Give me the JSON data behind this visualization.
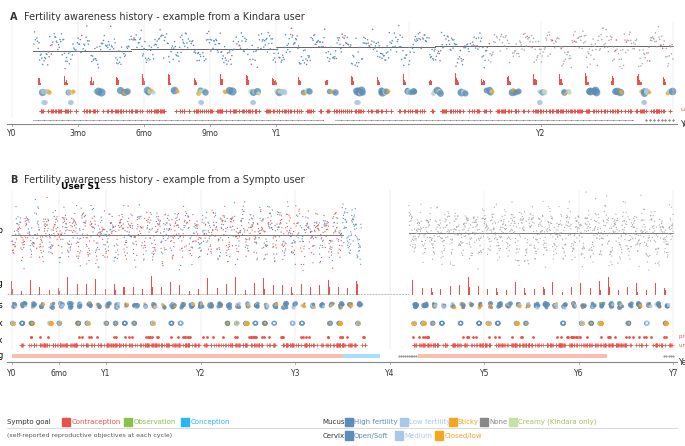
{
  "panel_A_title": "Fertility awareness history - example from a Kindara user",
  "panel_B_title": "Fertility awareness history - example from a Sympto user",
  "panel_B_subtitle": "User S1",
  "color_contraception": "#E8524A",
  "color_observation": "#8BC34A",
  "color_conception": "#29B6F6",
  "color_high_fertility": "#5B8DB8",
  "color_low_fertility": "#A8C8E8",
  "color_sticky": "#F5A623",
  "color_none_mucus": "#888888",
  "color_creamy": "#C5E1A5",
  "color_open_soft": "#5B8DB8",
  "color_medium": "#A8C8E8",
  "color_closed_low": "#F5A623",
  "color_temp_blue": "#5B8DB8",
  "color_temp_red": "#E8524A",
  "color_temp_gray": "#AAAAAA",
  "color_bleeding": "#E8524A",
  "color_mucus_high": "#5B8DB8",
  "color_mucus_low": "#A8C8E8",
  "color_mucus_sticky": "#F5A623",
  "color_mucus_none": "#888888",
  "color_mucus_creamy": "#C5E1A5",
  "color_sex_red": "#E8524A",
  "color_tracking": "#222222",
  "header_color": "#E8E8E8",
  "background_color": "#FFFFFF",
  "xtick_labels_A": [
    "Y0",
    "3mo",
    "6mo",
    "9mo",
    "Y1",
    "Y2"
  ],
  "xtick_labels_B": [
    "Y0",
    "6mo",
    "Y1",
    "Y2",
    "Y3",
    "Y4",
    "Y5",
    "Y6",
    "Y7"
  ]
}
